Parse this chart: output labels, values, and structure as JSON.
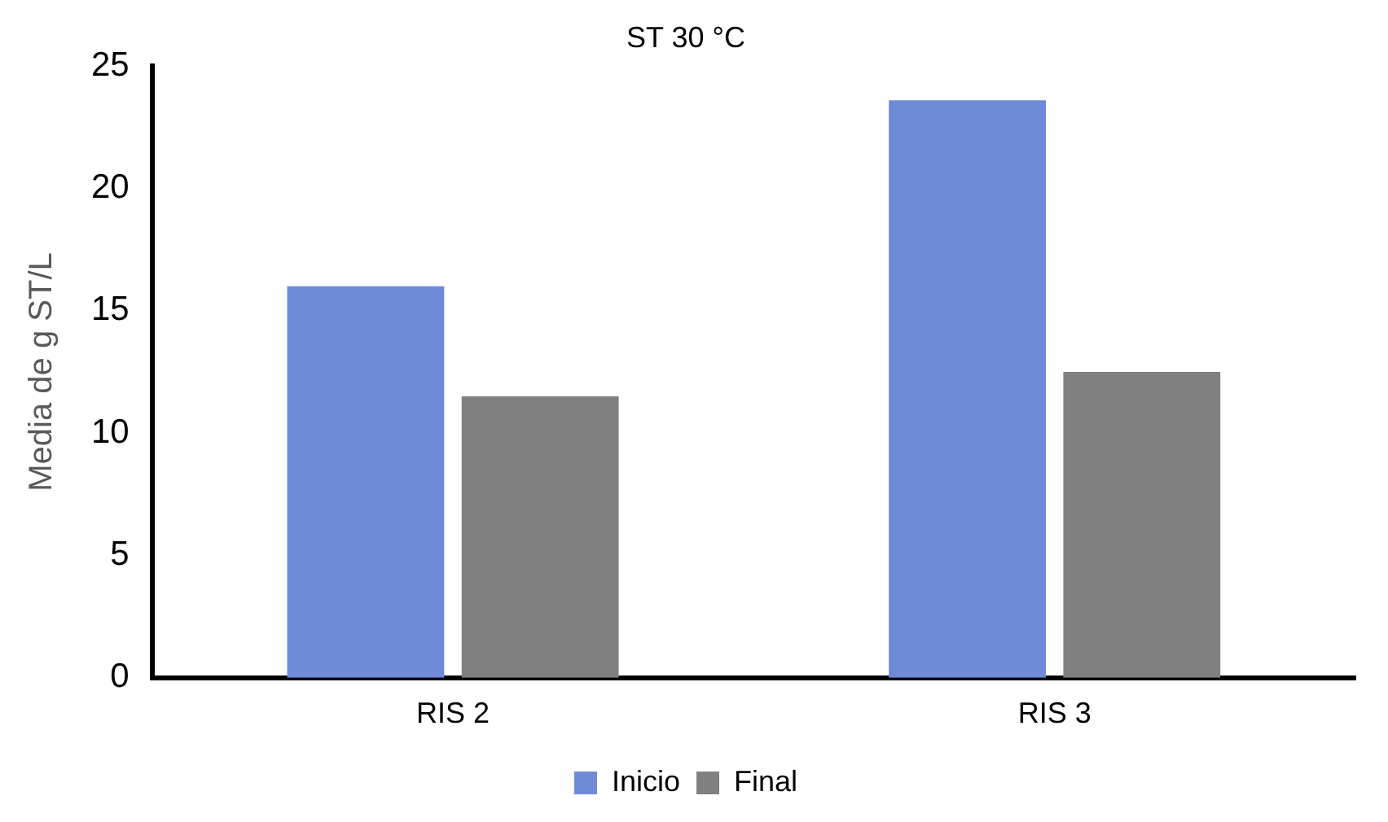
{
  "chart_data": {
    "type": "bar",
    "title": "ST 30 °C",
    "ylabel": "Media de g ST/L",
    "categories": [
      "RIS 2",
      "RIS 3"
    ],
    "series": [
      {
        "name": "Inicio",
        "color": "#6f8ad9",
        "values": [
          16.0,
          23.6
        ]
      },
      {
        "name": "Final",
        "color": "#808080",
        "values": [
          11.5,
          12.5
        ]
      }
    ],
    "ylim": [
      0,
      25
    ],
    "yticks": [
      0,
      5,
      10,
      15,
      20,
      25
    ],
    "grid": false,
    "legend": "bottom"
  }
}
